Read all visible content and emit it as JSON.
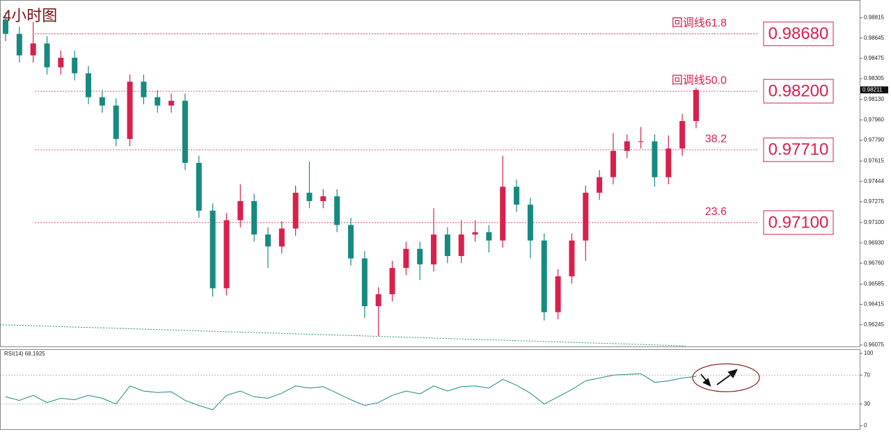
{
  "chart_data": {
    "type": "candlestick",
    "title": "4小时图",
    "open": [
      0.988,
      0.9868,
      0.985,
      0.986,
      0.984,
      0.9848,
      0.9835,
      0.9815,
      0.9808,
      0.978,
      0.9828,
      0.9815,
      0.9808,
      0.9812,
      0.976,
      0.972,
      0.9655,
      0.9712,
      0.9728,
      0.97,
      0.969,
      0.9705,
      0.9735,
      0.9728,
      0.9732,
      0.9708,
      0.968,
      0.964,
      0.965,
      0.9672,
      0.9688,
      0.9675,
      0.97,
      0.9682,
      0.97,
      0.9702,
      0.9695,
      0.974,
      0.9725,
      0.9695,
      0.9635,
      0.9665,
      0.9695,
      0.9735,
      0.9748,
      0.977,
      0.9778,
      0.9778,
      0.9748,
      0.9772,
      0.9795
    ],
    "high": [
      0.9886,
      0.9874,
      0.9878,
      0.9866,
      0.9854,
      0.9854,
      0.9841,
      0.9821,
      0.9814,
      0.9834,
      0.9834,
      0.9821,
      0.9818,
      0.9818,
      0.9766,
      0.9726,
      0.9718,
      0.9742,
      0.9734,
      0.9706,
      0.9711,
      0.9741,
      0.9761,
      0.9738,
      0.9738,
      0.9714,
      0.9686,
      0.9656,
      0.9678,
      0.9694,
      0.9694,
      0.9722,
      0.9706,
      0.9712,
      0.9712,
      0.9708,
      0.9766,
      0.9746,
      0.9731,
      0.9701,
      0.9671,
      0.9701,
      0.9741,
      0.9754,
      0.9785,
      0.9784,
      0.979,
      0.9784,
      0.9783,
      0.9801,
      0.9823
    ],
    "low": [
      0.9862,
      0.9844,
      0.9844,
      0.9834,
      0.9834,
      0.9829,
      0.9809,
      0.9802,
      0.9774,
      0.9774,
      0.9809,
      0.9802,
      0.9802,
      0.9754,
      0.9714,
      0.9648,
      0.9649,
      0.9706,
      0.9694,
      0.9672,
      0.9684,
      0.9699,
      0.9722,
      0.9722,
      0.9702,
      0.9674,
      0.963,
      0.9615,
      0.9644,
      0.9666,
      0.9662,
      0.9669,
      0.9676,
      0.9676,
      0.9694,
      0.9685,
      0.9689,
      0.9719,
      0.968,
      0.9628,
      0.9629,
      0.9659,
      0.9678,
      0.9729,
      0.9742,
      0.9764,
      0.9772,
      0.974,
      0.9742,
      0.9766,
      0.9789
    ],
    "close": [
      0.9868,
      0.985,
      0.986,
      0.984,
      0.9848,
      0.9835,
      0.9815,
      0.9808,
      0.978,
      0.9828,
      0.9815,
      0.9808,
      0.9812,
      0.976,
      0.972,
      0.9655,
      0.9712,
      0.9728,
      0.97,
      0.969,
      0.9705,
      0.9735,
      0.9728,
      0.9732,
      0.9708,
      0.968,
      0.964,
      0.965,
      0.9672,
      0.9688,
      0.9675,
      0.97,
      0.9682,
      0.97,
      0.9702,
      0.9695,
      0.974,
      0.9725,
      0.9695,
      0.9635,
      0.9665,
      0.9695,
      0.9735,
      0.9748,
      0.977,
      0.9778,
      0.9778,
      0.9748,
      0.9772,
      0.9795,
      0.98211
    ],
    "up_color": "#d8204c",
    "down_color": "#178a80",
    "ylim": [
      0.96063,
      0.98952
    ],
    "yticks": [
      0.98815,
      0.98645,
      0.98475,
      0.98305,
      {
        "value": 0.9813,
        "label": "0.98130"
      },
      {
        "value": 0.9796,
        "label": "0.97960"
      },
      {
        "value": 0.9779,
        "label": "0.97790"
      },
      0.97615,
      0.97444,
      0.97275,
      {
        "value": 0.971,
        "label": "0.97100"
      },
      {
        "value": 0.9693,
        "label": "0.96930"
      },
      {
        "value": 0.9676,
        "label": "0.96760"
      },
      0.96585,
      0.96415,
      0.96245,
      0.96075
    ],
    "last_price": 0.98211,
    "levels": {
      "names": [
        "回调线61.8",
        "回调线50.0",
        "38.2",
        "23.6"
      ],
      "values": [
        0.9868,
        0.982,
        0.9771,
        0.971
      ],
      "value_labels": [
        "0.98680",
        "0.98200",
        "0.97710",
        "0.97100"
      ],
      "color": "#d8204c"
    },
    "ma": {
      "color": "#178a80",
      "values": [
        0.96245,
        0.96068
      ]
    },
    "rsi": {
      "name": "RSI(14)",
      "color": "#178a80",
      "ylim": [
        0,
        100
      ],
      "yticks": [
        100,
        70,
        30,
        0
      ],
      "values": [
        40,
        35,
        42,
        32,
        38,
        36,
        42,
        38,
        30,
        55,
        48,
        46,
        47,
        35,
        28,
        22,
        42,
        48,
        40,
        38,
        45,
        55,
        52,
        54,
        45,
        36,
        28,
        32,
        42,
        48,
        44,
        55,
        48,
        54,
        55,
        52,
        64,
        56,
        45,
        30,
        40,
        50,
        62,
        66,
        70,
        71,
        72,
        60,
        62,
        66,
        68.1925
      ]
    }
  }
}
